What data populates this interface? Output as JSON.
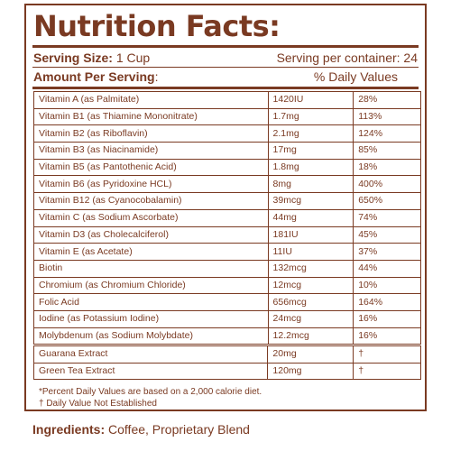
{
  "title": "Nutrition Facts:",
  "serving": {
    "size_label": "Serving Size:",
    "size_value": "1 Cup",
    "per_container": "Serving per container: 24"
  },
  "header": {
    "amount_label": "Amount Per Serving",
    "colon": ":",
    "dv_label": "% Daily Values"
  },
  "rows": [
    {
      "name": "Vitamin A (as Palmitate)",
      "amount": "1420IU",
      "dv": "28%"
    },
    {
      "name": "Vitamin B1 (as Thiamine Mononitrate)",
      "amount": "1.7mg",
      "dv": "113%"
    },
    {
      "name": "Vitamin B2 (as Riboflavin)",
      "amount": "2.1mg",
      "dv": "124%"
    },
    {
      "name": "Vitamin B3 (as Niacinamide)",
      "amount": "17mg",
      "dv": "85%"
    },
    {
      "name": "Vitamin B5 (as Pantothenic Acid)",
      "amount": "1.8mg",
      "dv": "18%"
    },
    {
      "name": "Vitamin B6 (as Pyridoxine HCL)",
      "amount": "8mg",
      "dv": "400%"
    },
    {
      "name": "Vitamin B12 (as Cyanocobalamin)",
      "amount": "39mcg",
      "dv": "650%"
    },
    {
      "name": "Vitamin C (as Sodium Ascorbate)",
      "amount": "44mg",
      "dv": "74%"
    },
    {
      "name": "Vitamin D3 (as Cholecalciferol)",
      "amount": "181IU",
      "dv": "45%"
    },
    {
      "name": "Vitamin E (as Acetate)",
      "amount": "11IU",
      "dv": "37%"
    },
    {
      "name": "Biotin",
      "amount": "132mcg",
      "dv": "44%"
    },
    {
      "name": "Chromium (as Chromium Chloride)",
      "amount": "12mcg",
      "dv": "10%"
    },
    {
      "name": "Folic Acid",
      "amount": "656mcg",
      "dv": "164%"
    },
    {
      "name": "Iodine (as Potassium Iodine)",
      "amount": "24mcg",
      "dv": "16%"
    },
    {
      "name": "Molybdenum (as Sodium Molybdate)",
      "amount": "12.2mcg",
      "dv": "16%"
    }
  ],
  "extracts": [
    {
      "name": "Guarana Extract",
      "amount": "20mg",
      "dv": "†"
    },
    {
      "name": "Green Tea Extract",
      "amount": "120mg",
      "dv": "†"
    }
  ],
  "footnotes": {
    "line1": "*Percent Daily Values are based on a 2,000 calorie diet.",
    "line2": "† Daily Value Not Established"
  },
  "ingredients": {
    "label": "Ingredients:",
    "value": "Coffee, Proprietary Blend"
  }
}
